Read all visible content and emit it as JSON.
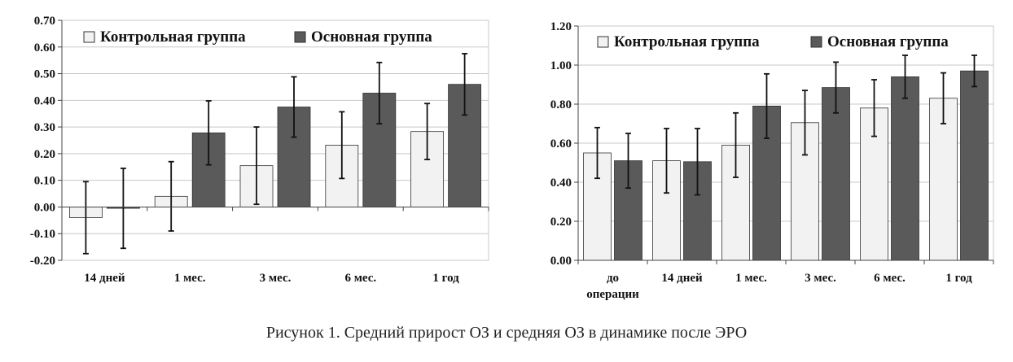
{
  "caption": "Рисунок 1. Средний прирост ОЗ и средняя ОЗ в динамике после ЭРО",
  "chart_data": [
    {
      "type": "bar",
      "categories": [
        "14 дней",
        "1 мес.",
        "3 мес.",
        "6 мес.",
        "1 год"
      ],
      "series": [
        {
          "name": "Контрольная группа",
          "color": "#f2f2f2",
          "values": [
            -0.04,
            0.04,
            0.155,
            0.232,
            0.283
          ],
          "errors": [
            0.135,
            0.13,
            0.145,
            0.125,
            0.105
          ]
        },
        {
          "name": "Основная группа",
          "color": "#5a5a5a",
          "values": [
            -0.005,
            0.278,
            0.375,
            0.427,
            0.46
          ],
          "errors": [
            0.15,
            0.12,
            0.113,
            0.115,
            0.115
          ]
        }
      ],
      "ylim": [
        -0.2,
        0.7
      ],
      "yticks": [
        "-0.20",
        "-0.10",
        "0.00",
        "0.10",
        "0.20",
        "0.30",
        "0.40",
        "0.50",
        "0.60",
        "0.70"
      ],
      "grid": true,
      "legend": "top"
    },
    {
      "type": "bar",
      "categories": [
        "до операции",
        "14 дней",
        "1 мес.",
        "3 мес.",
        "6 мес.",
        "1 год"
      ],
      "series": [
        {
          "name": "Контрольная группа",
          "color": "#f2f2f2",
          "values": [
            0.55,
            0.51,
            0.59,
            0.705,
            0.78,
            0.83
          ],
          "errors": [
            0.13,
            0.165,
            0.165,
            0.165,
            0.145,
            0.13
          ]
        },
        {
          "name": "Основная группа",
          "color": "#5a5a5a",
          "values": [
            0.51,
            0.505,
            0.79,
            0.885,
            0.94,
            0.97
          ],
          "errors": [
            0.14,
            0.17,
            0.165,
            0.13,
            0.11,
            0.08
          ]
        }
      ],
      "ylim": [
        0,
        1.2
      ],
      "yticks": [
        "0.00",
        "0.20",
        "0.40",
        "0.60",
        "0.80",
        "1.00",
        "1.20"
      ],
      "grid": true,
      "legend": "top"
    }
  ]
}
